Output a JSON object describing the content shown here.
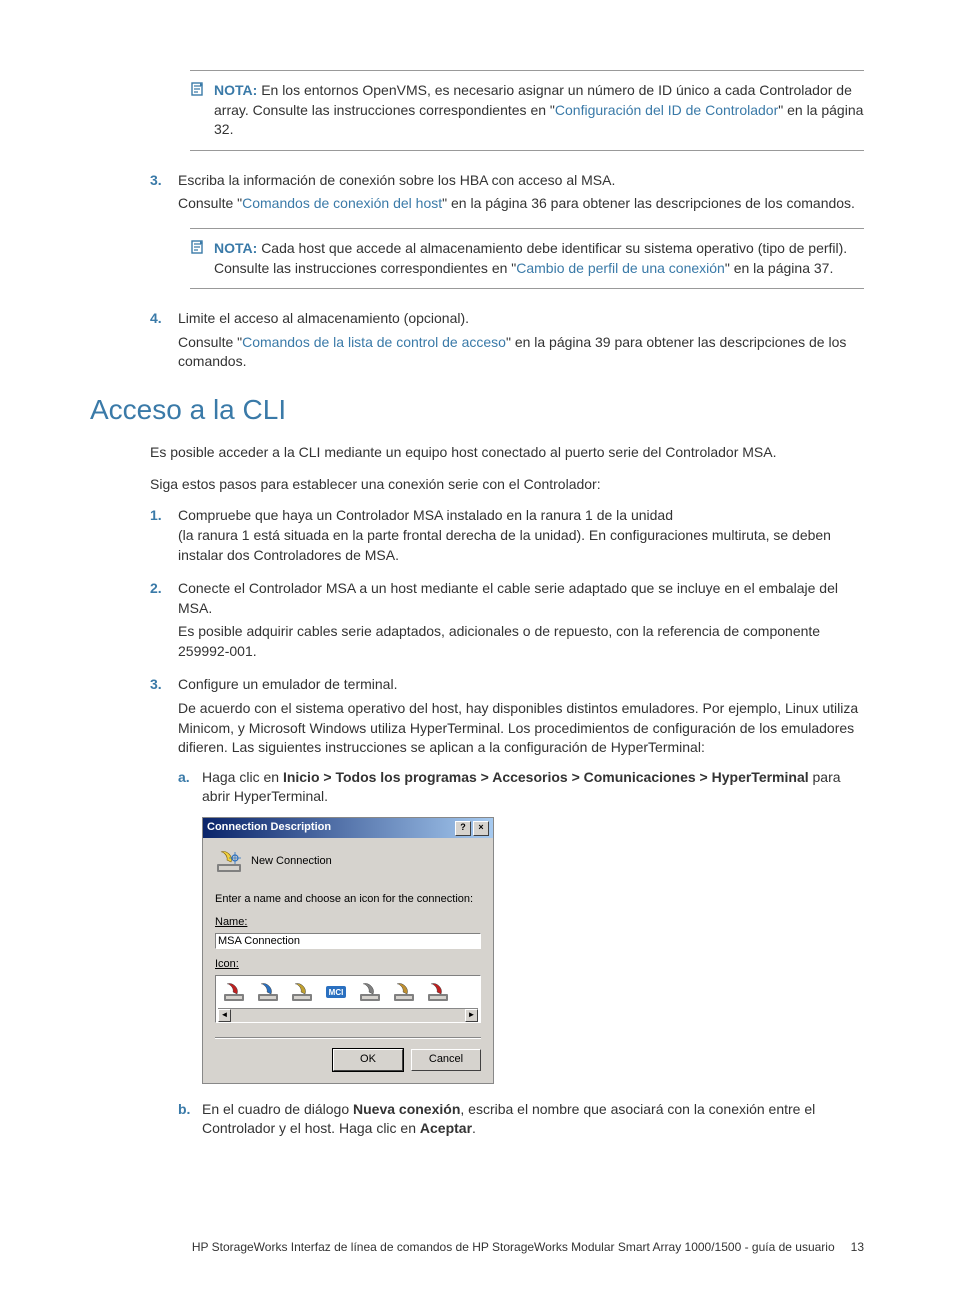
{
  "note1": {
    "label": "NOTA:",
    "before": "En los entornos OpenVMS, es necesario asignar un número de ID único a cada Controlador de array. Consulte las instrucciones correspondientes en \"",
    "link": "Configuración del ID de Controlador",
    "after": "\" en la página 32."
  },
  "step3": {
    "num": "3.",
    "text": "Escriba la información de conexión sobre los HBA con acceso al MSA.",
    "para_before": "Consulte \"",
    "para_link": "Comandos de conexión del host",
    "para_after": "\" en la página 36 para obtener las descripciones de los comandos."
  },
  "note2": {
    "label": "NOTA:",
    "before": "Cada host que accede al almacenamiento debe identificar su sistema operativo (tipo de perfil). Consulte las instrucciones correspondientes en \"",
    "link": "Cambio de perfil de una conexión",
    "after": "\" en la página 37."
  },
  "step4": {
    "num": "4.",
    "text": "Limite el acceso al almacenamiento (opcional).",
    "para_before": "Consulte \"",
    "para_link": "Comandos de la lista de control de acceso",
    "para_after": "\" en la página 39 para obtener las descripciones de los comandos."
  },
  "section_title": "Acceso a la CLI",
  "intro1": "Es posible acceder a la CLI mediante un equipo host conectado al puerto serie del Controlador MSA.",
  "intro2": "Siga estos pasos para establecer una conexión serie con el Controlador:",
  "cli": {
    "s1": {
      "num": "1.",
      "l1": "Compruebe que haya un Controlador MSA instalado en la ranura 1 de la unidad",
      "l2": "(la ranura 1 está situada en la parte frontal derecha de la unidad). En configuraciones multiruta, se deben instalar dos Controladores de MSA."
    },
    "s2": {
      "num": "2.",
      "text": "Conecte el Controlador MSA a un host mediante el cable serie adaptado que se incluye en el embalaje del MSA.",
      "para": "Es posible adquirir cables serie adaptados, adicionales o de repuesto, con la referencia de componente 259992-001."
    },
    "s3": {
      "num": "3.",
      "text": "Configure un emulador de terminal.",
      "para": "De acuerdo con el sistema operativo del host, hay disponibles distintos emuladores. Por ejemplo, Linux utiliza Minicom, y Microsoft Windows utiliza HyperTerminal. Los procedimientos de configuración de los emuladores difieren. Las siguientes instrucciones se aplican a la configuración de HyperTerminal:",
      "a": {
        "num": "a.",
        "before": "Haga clic en ",
        "bold": "Inicio > Todos los programas > Accesorios > Comunicaciones > HyperTerminal",
        "after": " para abrir HyperTerminal."
      },
      "b": {
        "num": "b.",
        "before": "En el cuadro de diálogo ",
        "bold1": "Nueva conexión",
        "mid": ", escriba el nombre que asociará con la conexión entre el Controlador y el host. Haga clic en ",
        "bold2": "Aceptar",
        "after": "."
      }
    }
  },
  "dialog": {
    "title": "Connection Description",
    "newconn": "New Connection",
    "prompt": "Enter a name and choose an icon for the connection:",
    "name_label": "Name:",
    "name_value": "MSA Connection",
    "icon_label": "Icon:",
    "ok": "OK",
    "cancel": "Cancel",
    "icon_colors": [
      "#c02020",
      "#2a70c0",
      "#c0a030",
      "#2a70c0",
      "#808080",
      "#c09030",
      "#c02020"
    ],
    "mci_label": "MCI"
  },
  "footer": {
    "text": "HP StorageWorks Interfaz de línea de comandos de HP StorageWorks Modular Smart Array 1000/1500 - guía de usuario",
    "page": "13"
  }
}
